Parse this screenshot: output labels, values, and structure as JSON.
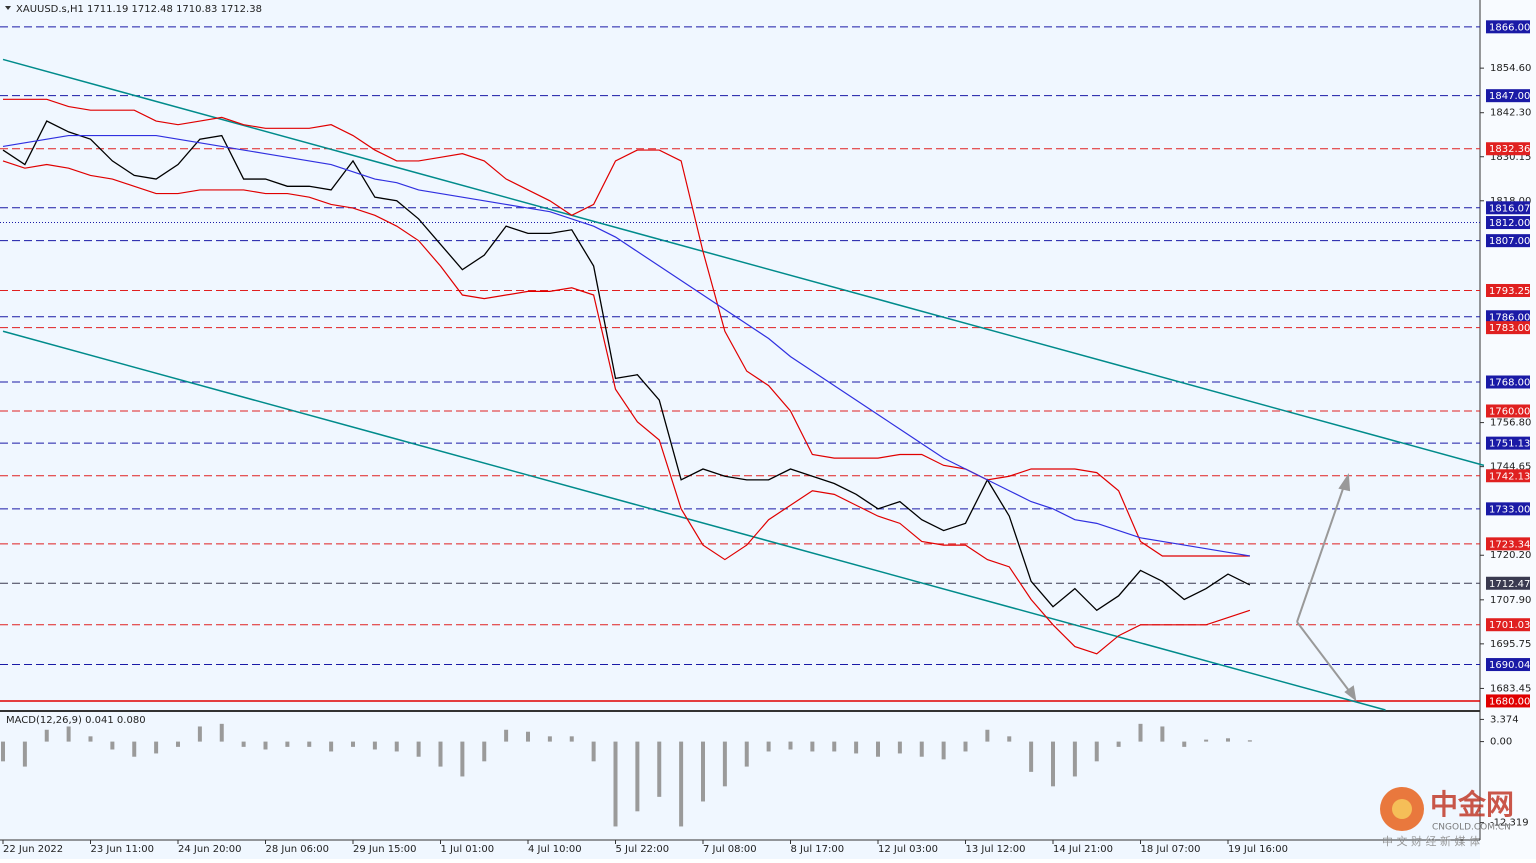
{
  "header": "XAUUSD.s,H1  1711.19 1712.48 1710.83 1712.38",
  "watermark": {
    "title": "中金网",
    "site": "CNGOLD.COM.CN",
    "slogan": "中 文 财 经 新 媒 体"
  },
  "chart_data": [
    {
      "type": "line",
      "categories": [
        "22 Jun 2022",
        null,
        null,
        null,
        "23 Jun 11:00",
        null,
        null,
        null,
        "24 Jun 20:00",
        null,
        null,
        null,
        "28 Jun 06:00",
        null,
        null,
        null,
        "29 Jun 15:00",
        null,
        null,
        null,
        "1 Jul 01:00",
        null,
        null,
        null,
        "4 Jul 10:00",
        null,
        null,
        null,
        "5 Jul 22:00",
        null,
        null,
        null,
        "7 Jul 08:00",
        null,
        null,
        null,
        "8 Jul 17:00",
        null,
        null,
        null,
        "12 Jul 03:00",
        null,
        null,
        null,
        "13 Jul 12:00",
        null,
        null,
        null,
        "14 Jul 21:00",
        null,
        null,
        null,
        "18 Jul 07:00",
        null,
        null,
        null,
        "19 Jul 16:00",
        null
      ],
      "series": [
        {
          "color": "#000000",
          "values": [
            1832,
            1828,
            1840,
            1837,
            1835,
            1829,
            1825,
            1824,
            1828,
            1835,
            1836,
            1824,
            1824,
            1822,
            1822,
            1821,
            1829,
            1819,
            1818,
            1813,
            1806,
            1799,
            1803,
            1811,
            1809,
            1809,
            1810,
            1800,
            1769,
            1770,
            1763,
            1741,
            1744,
            1742,
            1741,
            1741,
            1744,
            1742,
            1740,
            1737,
            1733,
            1735,
            1730,
            1727,
            1729,
            1741,
            1731,
            1713,
            1706,
            1711,
            1705,
            1709,
            1716,
            1713,
            1708,
            1711,
            1715,
            1712
          ]
        },
        {
          "color": "#e00000",
          "values": [
            1846,
            1846,
            1846,
            1844,
            1843,
            1843,
            1843,
            1840,
            1839,
            1840,
            1841,
            1839,
            1838,
            1838,
            1838,
            1839,
            1836,
            1832,
            1829,
            1829,
            1830,
            1831,
            1829,
            1824,
            1821,
            1818,
            1814,
            1817,
            1829,
            1832,
            1832,
            1829,
            1804,
            1782,
            1771,
            1767,
            1760,
            1748,
            1747,
            1747,
            1747,
            1748,
            1748,
            1745,
            1744,
            1741,
            1742,
            1744,
            1744,
            1744,
            1743,
            1738,
            1724,
            1720,
            1720,
            1720,
            1720,
            1720
          ]
        },
        {
          "color": "#e00000",
          "values": [
            1829,
            1827,
            1828,
            1827,
            1825,
            1824,
            1822,
            1820,
            1820,
            1821,
            1821,
            1821,
            1820,
            1820,
            1819,
            1817,
            1816,
            1814,
            1811,
            1807,
            1800,
            1792,
            1791,
            1792,
            1793,
            1793,
            1794,
            1792,
            1766,
            1757,
            1752,
            1733,
            1723,
            1719,
            1723,
            1730,
            1734,
            1738,
            1737,
            1734,
            1731,
            1729,
            1724,
            1723,
            1723,
            1719,
            1717,
            1708,
            1701,
            1695,
            1693,
            1698,
            1701,
            1701,
            1701,
            1701,
            1703,
            1705
          ]
        },
        {
          "color": "#3030e0",
          "values": [
            1833,
            1834,
            1835,
            1836,
            1836,
            1836,
            1836,
            1836,
            1835,
            1834,
            1833,
            1832,
            1831,
            1830,
            1829,
            1828,
            1826,
            1824,
            1823,
            1821,
            1820,
            1819,
            1818,
            1817,
            1816,
            1815,
            1813,
            1811,
            1808,
            1804,
            1800,
            1796,
            1792,
            1788,
            1784,
            1780,
            1775,
            1771,
            1767,
            1763,
            1759,
            1755,
            1751,
            1747,
            1744,
            1741,
            1738,
            1735,
            1733,
            1730,
            1729,
            1727,
            1725,
            1724,
            1723,
            1722,
            1721,
            1720
          ]
        }
      ],
      "trendlines": [
        {
          "color": "#008b8b",
          "x": [
            0,
            67.7
          ],
          "values": [
            1857,
            1745
          ]
        },
        {
          "color": "#008b8b",
          "x": [
            0,
            63.2
          ],
          "values": [
            1782,
            1677.5
          ]
        }
      ],
      "levels": [
        {
          "value": 1866,
          "label": "1866.00",
          "color": "#1a1aa6"
        },
        {
          "value": 1847,
          "label": "1847.00",
          "color": "#1a1aa6"
        },
        {
          "value": 1832.36,
          "label": "1832.36",
          "color": "#e02020"
        },
        {
          "value": 1816.07,
          "label": "1816.07",
          "color": "#1a1aa6"
        },
        {
          "value": 1812,
          "label": "1812.00",
          "color": "#1a1aa6"
        },
        {
          "value": 1807,
          "label": "1807.00",
          "color": "#1a1aa6"
        },
        {
          "value": 1793.25,
          "label": "1793.25",
          "color": "#e02020"
        },
        {
          "value": 1786,
          "label": "1786.00",
          "color": "#1a1aa6"
        },
        {
          "value": 1783,
          "label": "1783.00",
          "color": "#e02020"
        },
        {
          "value": 1768,
          "label": "1768.00",
          "color": "#1a1aa6"
        },
        {
          "value": 1760,
          "label": "1760.00",
          "color": "#e02020"
        },
        {
          "value": 1751.13,
          "label": "1751.13",
          "color": "#1a1aa6"
        },
        {
          "value": 1742.13,
          "label": "1742.13",
          "color": "#e02020"
        },
        {
          "value": 1733,
          "label": "1733.00",
          "color": "#1a1aa6"
        },
        {
          "value": 1723.34,
          "label": "1723.34",
          "color": "#e02020"
        },
        {
          "value": 1712.47,
          "label": "1712.47",
          "color": "#3a3a50"
        },
        {
          "value": 1701.03,
          "label": "1701.03",
          "color": "#e02020"
        },
        {
          "value": 1690.04,
          "label": "1690.04",
          "color": "#1a1aa6"
        },
        {
          "value": 1680,
          "label": "1680.00",
          "color": "#e00000"
        }
      ],
      "ylim": [
        1677.5,
        1873.4
      ],
      "yticks": [
        {
          "value": 1854.6,
          "label": "1854.60"
        },
        {
          "value": 1842.3,
          "label": "1842.30"
        },
        {
          "value": 1830.15,
          "label": "1830.15"
        },
        {
          "value": 1818,
          "label": "1818.00"
        },
        {
          "value": 1756.8,
          "label": "1756.80"
        },
        {
          "value": 1744.65,
          "label": "1744.65"
        },
        {
          "value": 1720.2,
          "label": "1720.20"
        },
        {
          "value": 1707.9,
          "label": "1707.90"
        },
        {
          "value": 1695.75,
          "label": "1695.75"
        },
        {
          "value": 1683.45,
          "label": "1683.45"
        }
      ]
    },
    {
      "type": "bar",
      "title": "MACD(12,26,9) 0.041 0.080",
      "color": "#9a9a9a",
      "values": [
        -3,
        -3.8,
        1.8,
        2.3,
        0.8,
        -1.2,
        -2.3,
        -1.8,
        -0.8,
        2.3,
        2.7,
        -0.8,
        -1.2,
        -0.8,
        -0.8,
        -1.5,
        -0.8,
        -1.2,
        -1.5,
        -2.3,
        -3.8,
        -5.3,
        -3,
        1.8,
        1.5,
        0.8,
        0.8,
        -3,
        -12.9,
        -10.6,
        -8.4,
        -12.9,
        -9.1,
        -6.8,
        -3.8,
        -1.5,
        -1.2,
        -1.5,
        -1.5,
        -1.8,
        -2.3,
        -1.8,
        -2.3,
        -2.7,
        -1.5,
        1.8,
        0.8,
        -4.6,
        -6.8,
        -5.3,
        -3,
        -0.8,
        2.7,
        2.3,
        -0.8,
        0.3,
        0.5,
        0.2
      ],
      "ylim": [
        -14.2,
        4.5
      ],
      "yticks": [
        3.374,
        {
          "value": 0,
          "label": "0.00"
        },
        -12.319
      ]
    }
  ]
}
